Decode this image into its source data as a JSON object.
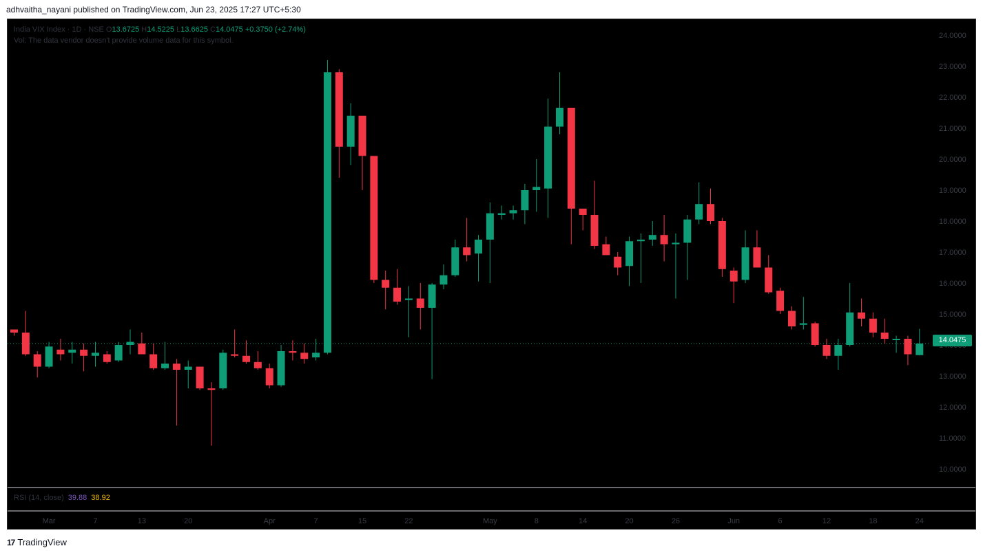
{
  "header": {
    "text": "adhvaitha_nayani published on TradingView.com, Jun 23, 2025 17:27 UTC+5:30"
  },
  "legend": {
    "symbol": "India VIX Index · 1D · NSE",
    "o_label": "O",
    "o_value": "13.6725",
    "h_label": "H",
    "h_value": "14.5225",
    "l_label": "L",
    "l_value": "13.6625",
    "c_label": "C",
    "c_value": "14.0475",
    "change": "+0.3750 (+2.74%)",
    "vol_note": "Vol: The data vendor doesn't provide volume data for this symbol."
  },
  "rsi": {
    "label": "RSI (14, close)",
    "value1": "39.88",
    "value2": "38.92"
  },
  "last_price": {
    "label": "14.0475"
  },
  "footer": {
    "logo_mark": "17",
    "brand": "TradingView"
  },
  "colors": {
    "up": "#0f9d78",
    "down": "#f23645",
    "background": "#000000",
    "rsi_line": "#7e57c2",
    "rsi_ma": "#f0b90b"
  },
  "chart_data": {
    "type": "candlestick",
    "y_axis_labels": [
      "24.0000",
      "23.0000",
      "22.0000",
      "21.0000",
      "20.0000",
      "19.0000",
      "18.0000",
      "17.0000",
      "16.0000",
      "15.0000",
      "14.0000",
      "13.0000",
      "12.0000",
      "11.0000",
      "10.0000"
    ],
    "ylim": [
      9.4,
      24.4
    ],
    "x_axis_labels": [
      "Mar",
      "7",
      "13",
      "20",
      "Apr",
      "7",
      "15",
      "22",
      "May",
      "8",
      "14",
      "20",
      "26",
      "Jun",
      "6",
      "12",
      "18",
      "24"
    ],
    "x_label_slots": [
      3,
      7,
      11,
      15,
      22,
      26,
      30,
      34,
      41,
      45,
      49,
      53,
      57,
      62,
      66,
      70,
      74,
      78
    ],
    "last_price_line": 14.0475,
    "candles": [
      {
        "o": 14.5,
        "h": 14.5,
        "l": 14.3,
        "c": 14.4
      },
      {
        "o": 14.4,
        "h": 15.1,
        "l": 13.65,
        "c": 13.7
      },
      {
        "o": 13.7,
        "h": 13.8,
        "l": 12.95,
        "c": 13.3
      },
      {
        "o": 13.3,
        "h": 14.1,
        "l": 13.25,
        "c": 13.95
      },
      {
        "o": 13.85,
        "h": 14.2,
        "l": 13.5,
        "c": 13.7
      },
      {
        "o": 13.75,
        "h": 14.1,
        "l": 13.4,
        "c": 13.85
      },
      {
        "o": 13.85,
        "h": 14.05,
        "l": 13.15,
        "c": 13.65
      },
      {
        "o": 13.65,
        "h": 14.1,
        "l": 13.3,
        "c": 13.75
      },
      {
        "o": 13.7,
        "h": 13.8,
        "l": 13.4,
        "c": 13.45
      },
      {
        "o": 13.5,
        "h": 14.1,
        "l": 13.45,
        "c": 14.0
      },
      {
        "o": 14.0,
        "h": 14.5,
        "l": 13.7,
        "c": 14.1
      },
      {
        "o": 14.05,
        "h": 14.4,
        "l": 13.75,
        "c": 13.7
      },
      {
        "o": 13.7,
        "h": 14.05,
        "l": 13.2,
        "c": 13.25
      },
      {
        "o": 13.25,
        "h": 14.1,
        "l": 13.2,
        "c": 13.4
      },
      {
        "o": 13.4,
        "h": 13.55,
        "l": 11.4,
        "c": 13.2
      },
      {
        "o": 13.2,
        "h": 13.5,
        "l": 12.6,
        "c": 13.3
      },
      {
        "o": 13.3,
        "h": 13.3,
        "l": 12.55,
        "c": 12.6
      },
      {
        "o": 12.6,
        "h": 12.8,
        "l": 10.75,
        "c": 12.55
      },
      {
        "o": 12.6,
        "h": 13.85,
        "l": 12.55,
        "c": 13.75
      },
      {
        "o": 13.7,
        "h": 14.5,
        "l": 13.6,
        "c": 13.65
      },
      {
        "o": 13.65,
        "h": 14.15,
        "l": 13.4,
        "c": 13.45
      },
      {
        "o": 13.45,
        "h": 13.8,
        "l": 13.2,
        "c": 13.25
      },
      {
        "o": 13.25,
        "h": 13.4,
        "l": 12.6,
        "c": 12.7
      },
      {
        "o": 12.7,
        "h": 14.0,
        "l": 12.65,
        "c": 13.8
      },
      {
        "o": 13.8,
        "h": 14.15,
        "l": 13.5,
        "c": 13.75
      },
      {
        "o": 13.75,
        "h": 14.05,
        "l": 13.4,
        "c": 13.55
      },
      {
        "o": 13.6,
        "h": 14.2,
        "l": 13.5,
        "c": 13.75
      },
      {
        "o": 13.75,
        "h": 23.2,
        "l": 13.7,
        "c": 22.8
      },
      {
        "o": 22.8,
        "h": 22.9,
        "l": 19.4,
        "c": 20.4
      },
      {
        "o": 20.4,
        "h": 21.8,
        "l": 19.8,
        "c": 21.4
      },
      {
        "o": 21.4,
        "h": 21.4,
        "l": 19.0,
        "c": 20.1
      },
      {
        "o": 20.1,
        "h": 20.1,
        "l": 16.0,
        "c": 16.1
      },
      {
        "o": 16.1,
        "h": 16.4,
        "l": 15.15,
        "c": 15.85
      },
      {
        "o": 15.85,
        "h": 16.45,
        "l": 15.3,
        "c": 15.4
      },
      {
        "o": 15.45,
        "h": 15.9,
        "l": 14.25,
        "c": 15.5
      },
      {
        "o": 15.5,
        "h": 16.0,
        "l": 14.5,
        "c": 15.2
      },
      {
        "o": 15.2,
        "h": 16.0,
        "l": 12.9,
        "c": 15.95
      },
      {
        "o": 15.95,
        "h": 16.6,
        "l": 15.8,
        "c": 16.25
      },
      {
        "o": 16.25,
        "h": 17.4,
        "l": 16.2,
        "c": 17.15
      },
      {
        "o": 17.15,
        "h": 18.1,
        "l": 16.7,
        "c": 16.9
      },
      {
        "o": 16.95,
        "h": 17.55,
        "l": 16.05,
        "c": 17.4
      },
      {
        "o": 17.4,
        "h": 18.6,
        "l": 16.0,
        "c": 18.25
      },
      {
        "o": 18.2,
        "h": 18.5,
        "l": 18.05,
        "c": 18.25
      },
      {
        "o": 18.25,
        "h": 18.5,
        "l": 18.05,
        "c": 18.35
      },
      {
        "o": 18.35,
        "h": 19.2,
        "l": 17.9,
        "c": 19.0
      },
      {
        "o": 19.0,
        "h": 20.0,
        "l": 18.3,
        "c": 19.1
      },
      {
        "o": 19.05,
        "h": 21.95,
        "l": 18.1,
        "c": 21.05
      },
      {
        "o": 21.05,
        "h": 22.8,
        "l": 20.8,
        "c": 21.65
      },
      {
        "o": 21.65,
        "h": 21.65,
        "l": 17.25,
        "c": 18.4
      },
      {
        "o": 18.4,
        "h": 18.4,
        "l": 17.7,
        "c": 18.2
      },
      {
        "o": 18.2,
        "h": 19.3,
        "l": 17.1,
        "c": 17.2
      },
      {
        "o": 17.25,
        "h": 17.5,
        "l": 16.9,
        "c": 16.9
      },
      {
        "o": 16.85,
        "h": 17.0,
        "l": 16.25,
        "c": 16.5
      },
      {
        "o": 16.55,
        "h": 17.5,
        "l": 15.9,
        "c": 17.35
      },
      {
        "o": 17.35,
        "h": 17.6,
        "l": 16.0,
        "c": 17.4
      },
      {
        "o": 17.4,
        "h": 18.0,
        "l": 17.2,
        "c": 17.55
      },
      {
        "o": 17.55,
        "h": 18.2,
        "l": 16.7,
        "c": 17.25
      },
      {
        "o": 17.25,
        "h": 17.6,
        "l": 15.5,
        "c": 17.3
      },
      {
        "o": 17.3,
        "h": 18.2,
        "l": 16.1,
        "c": 18.05
      },
      {
        "o": 18.05,
        "h": 19.25,
        "l": 17.9,
        "c": 18.55
      },
      {
        "o": 18.55,
        "h": 19.05,
        "l": 17.9,
        "c": 18.0
      },
      {
        "o": 18.0,
        "h": 18.1,
        "l": 16.2,
        "c": 16.45
      },
      {
        "o": 16.4,
        "h": 16.5,
        "l": 15.35,
        "c": 16.05
      },
      {
        "o": 16.1,
        "h": 17.7,
        "l": 16.0,
        "c": 17.15
      },
      {
        "o": 17.15,
        "h": 17.7,
        "l": 16.5,
        "c": 16.5
      },
      {
        "o": 16.5,
        "h": 16.9,
        "l": 15.65,
        "c": 15.7
      },
      {
        "o": 15.75,
        "h": 15.85,
        "l": 15.0,
        "c": 15.1
      },
      {
        "o": 15.1,
        "h": 15.25,
        "l": 14.5,
        "c": 14.6
      },
      {
        "o": 14.65,
        "h": 15.55,
        "l": 14.5,
        "c": 14.7
      },
      {
        "o": 14.7,
        "h": 14.75,
        "l": 13.95,
        "c": 14.0
      },
      {
        "o": 14.0,
        "h": 14.2,
        "l": 13.55,
        "c": 13.65
      },
      {
        "o": 13.65,
        "h": 14.2,
        "l": 13.2,
        "c": 14.0
      },
      {
        "o": 14.0,
        "h": 16.0,
        "l": 13.95,
        "c": 15.05
      },
      {
        "o": 15.05,
        "h": 15.5,
        "l": 14.6,
        "c": 14.85
      },
      {
        "o": 14.85,
        "h": 15.05,
        "l": 14.25,
        "c": 14.4
      },
      {
        "o": 14.4,
        "h": 14.85,
        "l": 14.05,
        "c": 14.2
      },
      {
        "o": 14.2,
        "h": 14.3,
        "l": 13.75,
        "c": 14.2
      },
      {
        "o": 14.2,
        "h": 14.3,
        "l": 13.35,
        "c": 13.7
      },
      {
        "o": 13.6725,
        "h": 14.5225,
        "l": 13.6625,
        "c": 14.0475
      }
    ]
  }
}
